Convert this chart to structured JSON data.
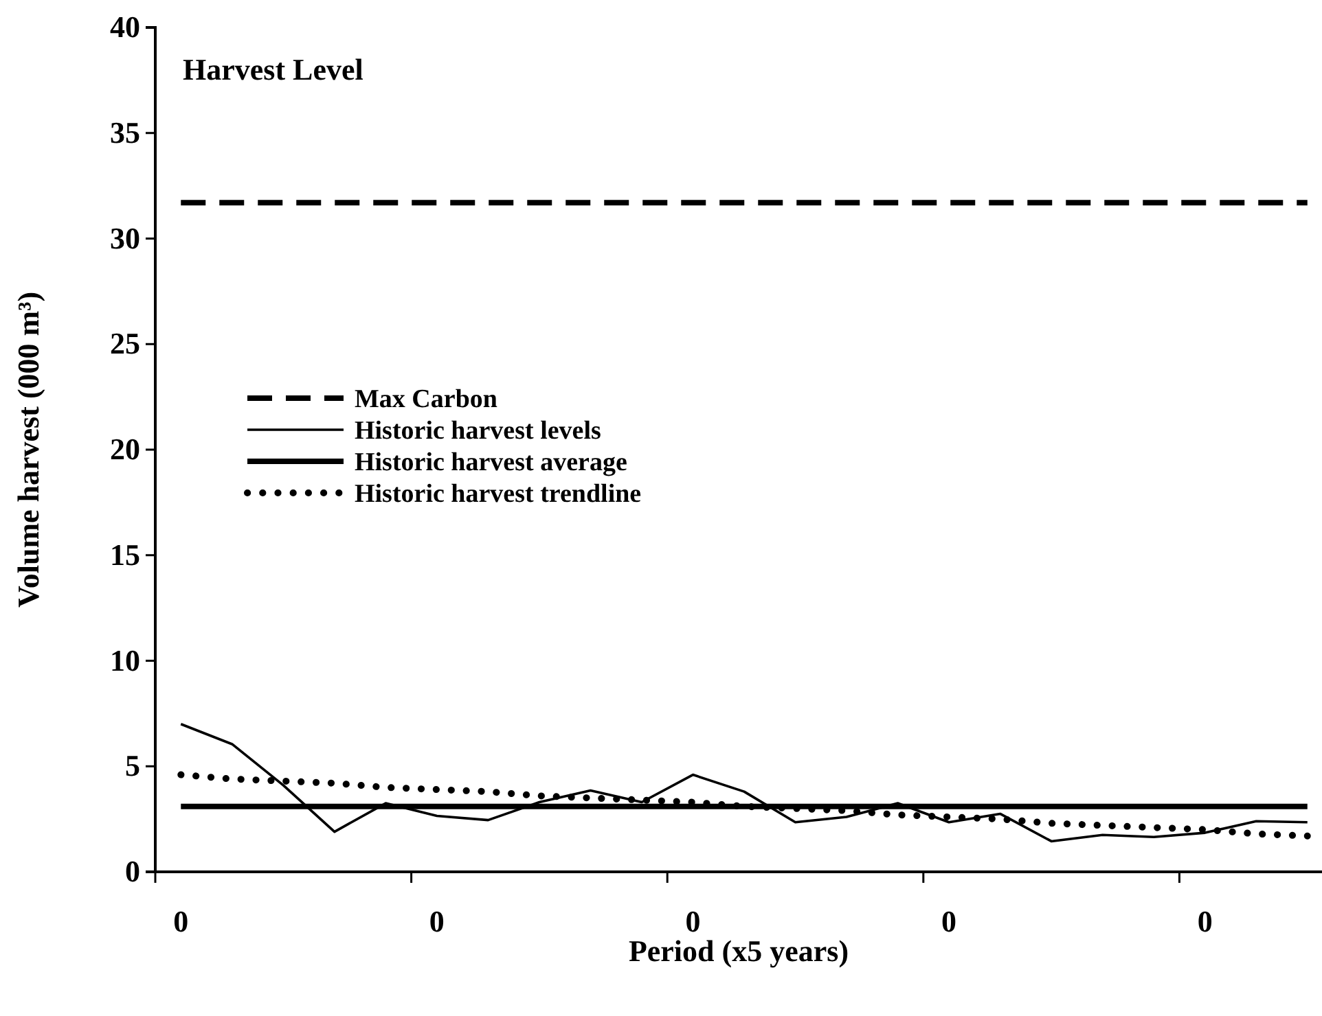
{
  "chart_data": {
    "type": "line",
    "title": "Harvest Level",
    "xlabel": "Period (x5 years)",
    "ylabel": "Volume harvest (000 m³)",
    "categories": [
      "0",
      null,
      null,
      null,
      null,
      "0",
      null,
      null,
      null,
      null,
      "0",
      null,
      null,
      null,
      null,
      "0",
      null,
      null,
      null,
      null,
      "0",
      null,
      null
    ],
    "ylim": [
      0,
      40
    ],
    "yticks": [
      0,
      5,
      10,
      15,
      20,
      25,
      30,
      35,
      40
    ],
    "grid": false,
    "legend": "left",
    "marker": "none",
    "series": [
      {
        "name": "Max Carbon",
        "color": "#000000",
        "line_style": "dashed",
        "values": [
          31.7,
          31.7,
          31.7,
          31.7,
          31.7,
          31.7,
          31.7,
          31.7,
          31.7,
          31.7,
          31.7,
          31.7,
          31.7,
          31.7,
          31.7,
          31.7,
          31.7,
          31.7,
          31.7,
          31.7,
          31.7,
          31.7,
          31.7
        ]
      },
      {
        "name": "Historic harvest levels",
        "color": "#000000",
        "line_style": "solid",
        "values": [
          7.0,
          6.05,
          4.1,
          1.9,
          3.25,
          2.65,
          2.45,
          3.3,
          3.85,
          3.3,
          4.6,
          3.8,
          2.35,
          2.6,
          3.25,
          2.35,
          2.75,
          1.45,
          1.75,
          1.65,
          1.85,
          2.4,
          2.35
        ]
      },
      {
        "name": "Historic harvest average",
        "color": "#000000",
        "line_style": "solid",
        "values": [
          3.1,
          3.1,
          3.1,
          3.1,
          3.1,
          3.1,
          3.1,
          3.1,
          3.1,
          3.1,
          3.1,
          3.1,
          3.1,
          3.1,
          3.1,
          3.1,
          3.1,
          3.1,
          3.1,
          3.1,
          3.1,
          3.1,
          3.1
        ]
      },
      {
        "name": "Historic harvest trendline",
        "color": "#000000",
        "line_style": "dotted",
        "values": [
          4.6,
          4.4,
          4.3,
          4.2,
          4.0,
          3.9,
          3.8,
          3.6,
          3.5,
          3.4,
          3.3,
          3.1,
          3.0,
          2.9,
          2.7,
          2.6,
          2.5,
          2.3,
          2.2,
          2.1,
          2.0,
          1.8,
          1.7
        ]
      }
    ]
  }
}
